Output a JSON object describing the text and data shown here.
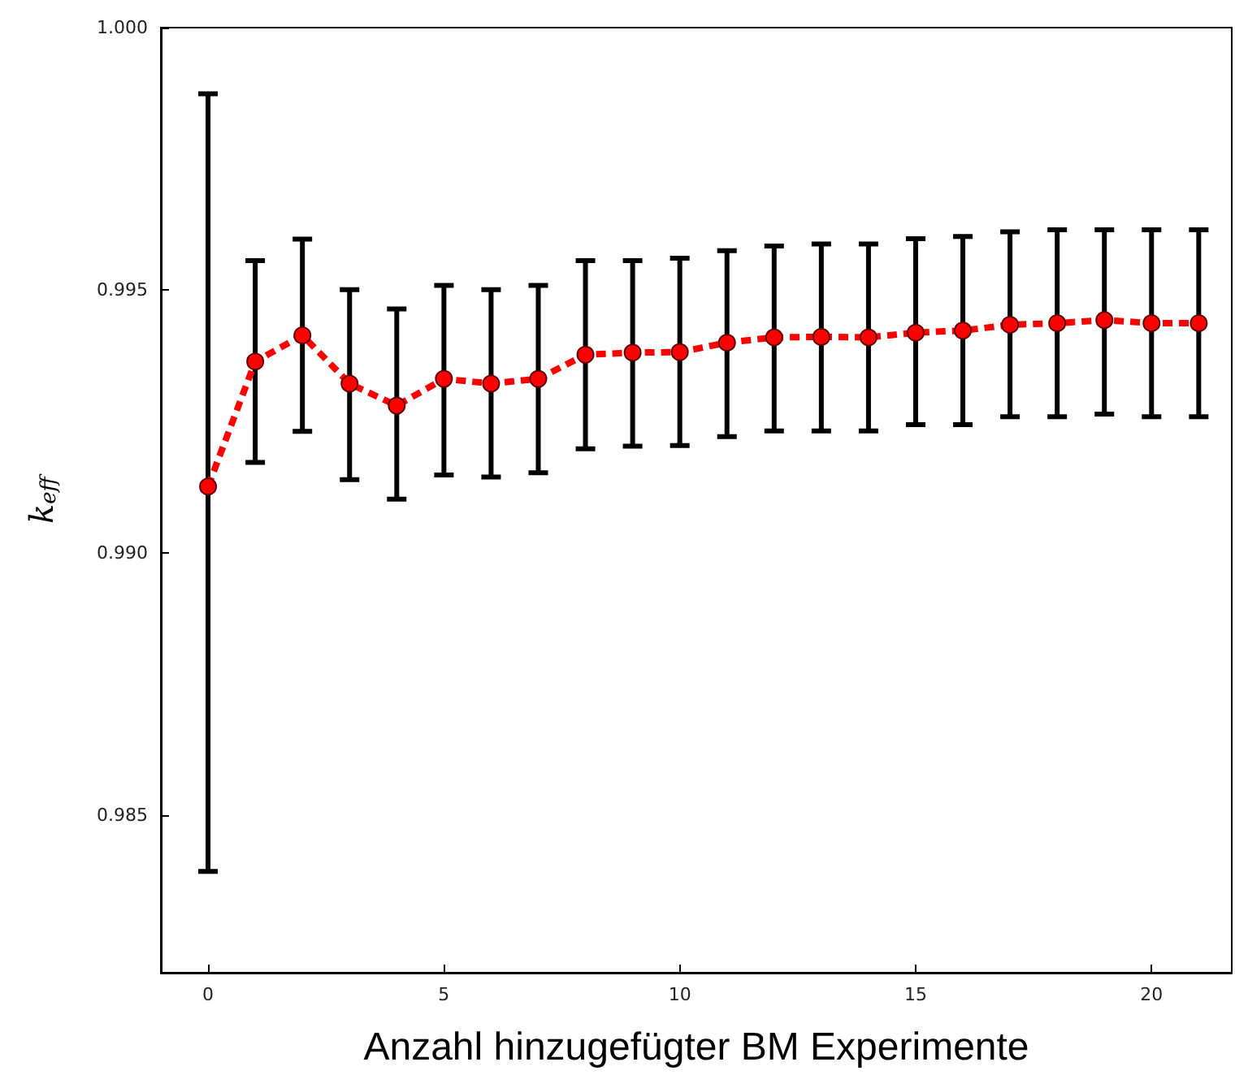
{
  "chart_data": {
    "type": "line",
    "xlabel": "Anzahl hinzugefügter BM Experimente",
    "ylabel": "k$_{eff}$",
    "x": [
      0,
      1,
      2,
      3,
      4,
      5,
      6,
      7,
      8,
      9,
      10,
      11,
      12,
      13,
      14,
      15,
      16,
      17,
      18,
      19,
      20,
      21
    ],
    "series": [
      {
        "color": "#ff0000",
        "values": [
          0.99126,
          0.99364,
          0.99414,
          0.99322,
          0.9928,
          0.99331,
          0.99322,
          0.99331,
          0.99377,
          0.99381,
          0.99382,
          0.994,
          0.9941,
          0.99411,
          0.9941,
          0.99419,
          0.99423,
          0.99434,
          0.99437,
          0.99443,
          0.99437,
          0.99437
        ],
        "errors": [
          [
            0.98393,
            0.99874
          ],
          [
            0.99172,
            0.99556
          ],
          [
            0.99231,
            0.99597
          ],
          [
            0.99139,
            0.99501
          ],
          [
            0.99102,
            0.99464
          ],
          [
            0.99148,
            0.99509
          ],
          [
            0.99144,
            0.99501
          ],
          [
            0.99152,
            0.99509
          ],
          [
            0.99198,
            0.99556
          ],
          [
            0.99203,
            0.99556
          ],
          [
            0.99204,
            0.99561
          ],
          [
            0.99221,
            0.99575
          ],
          [
            0.99232,
            0.99584
          ],
          [
            0.99232,
            0.99588
          ],
          [
            0.99232,
            0.99588
          ],
          [
            0.99244,
            0.99598
          ],
          [
            0.99244,
            0.99602
          ],
          [
            0.99259,
            0.99611
          ],
          [
            0.99259,
            0.99615
          ],
          [
            0.99264,
            0.99615
          ],
          [
            0.99259,
            0.99615
          ],
          [
            0.99259,
            0.99615
          ]
        ]
      }
    ],
    "xlim": [
      -1,
      21.7
    ],
    "xticks": [
      0,
      5,
      10,
      15,
      20
    ],
    "ylim": [
      0.982,
      1.0
    ],
    "yticks": [
      {
        "value": 0.985,
        "label": "0.985"
      },
      {
        "value": 0.99,
        "label": "0.990"
      },
      {
        "value": 0.995,
        "label": "0.995"
      },
      {
        "value": 1.0,
        "label": "1.000"
      }
    ],
    "grid": false,
    "marker": "circle",
    "line_style": "dashed"
  }
}
